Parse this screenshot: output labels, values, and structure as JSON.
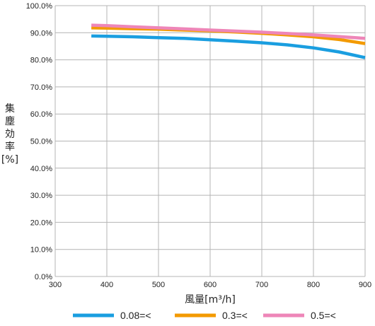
{
  "chart_data": {
    "type": "line",
    "xlabel": "風量[m³/h]",
    "ylabel": "集塵効率[%]",
    "xlim": [
      300,
      900
    ],
    "ylim": [
      0,
      100
    ],
    "x_ticks": [
      300,
      400,
      500,
      600,
      700,
      800,
      900
    ],
    "y_ticks": [
      0,
      10,
      20,
      30,
      40,
      50,
      60,
      70,
      80,
      90,
      100
    ],
    "y_tick_labels": [
      "0.0%",
      "10.0%",
      "20.0%",
      "30.0%",
      "40.0%",
      "50.0%",
      "60.0%",
      "70.0%",
      "80.0%",
      "90.0%",
      "100.0%"
    ],
    "grid": true,
    "legend_position": "bottom",
    "series": [
      {
        "name": "0.08=<",
        "color": "#1a9ee0",
        "x": [
          370,
          400,
          450,
          500,
          550,
          600,
          650,
          700,
          750,
          800,
          850,
          900
        ],
        "y": [
          88.8,
          88.7,
          88.5,
          88.2,
          87.9,
          87.4,
          86.9,
          86.3,
          85.5,
          84.4,
          82.9,
          80.8
        ]
      },
      {
        "name": "0.3=<",
        "color": "#f39a00",
        "x": [
          370,
          400,
          450,
          500,
          550,
          600,
          650,
          700,
          750,
          800,
          850,
          900
        ],
        "y": [
          91.8,
          91.7,
          91.5,
          91.3,
          91.0,
          90.7,
          90.3,
          89.8,
          89.2,
          88.5,
          87.5,
          86.0
        ]
      },
      {
        "name": "0.5=<",
        "color": "#ee86b8",
        "x": [
          370,
          400,
          450,
          500,
          550,
          600,
          650,
          700,
          750,
          800,
          850,
          900
        ],
        "y": [
          92.8,
          92.6,
          92.2,
          91.8,
          91.4,
          91.0,
          90.6,
          90.2,
          89.7,
          89.2,
          88.6,
          87.9
        ]
      }
    ]
  }
}
